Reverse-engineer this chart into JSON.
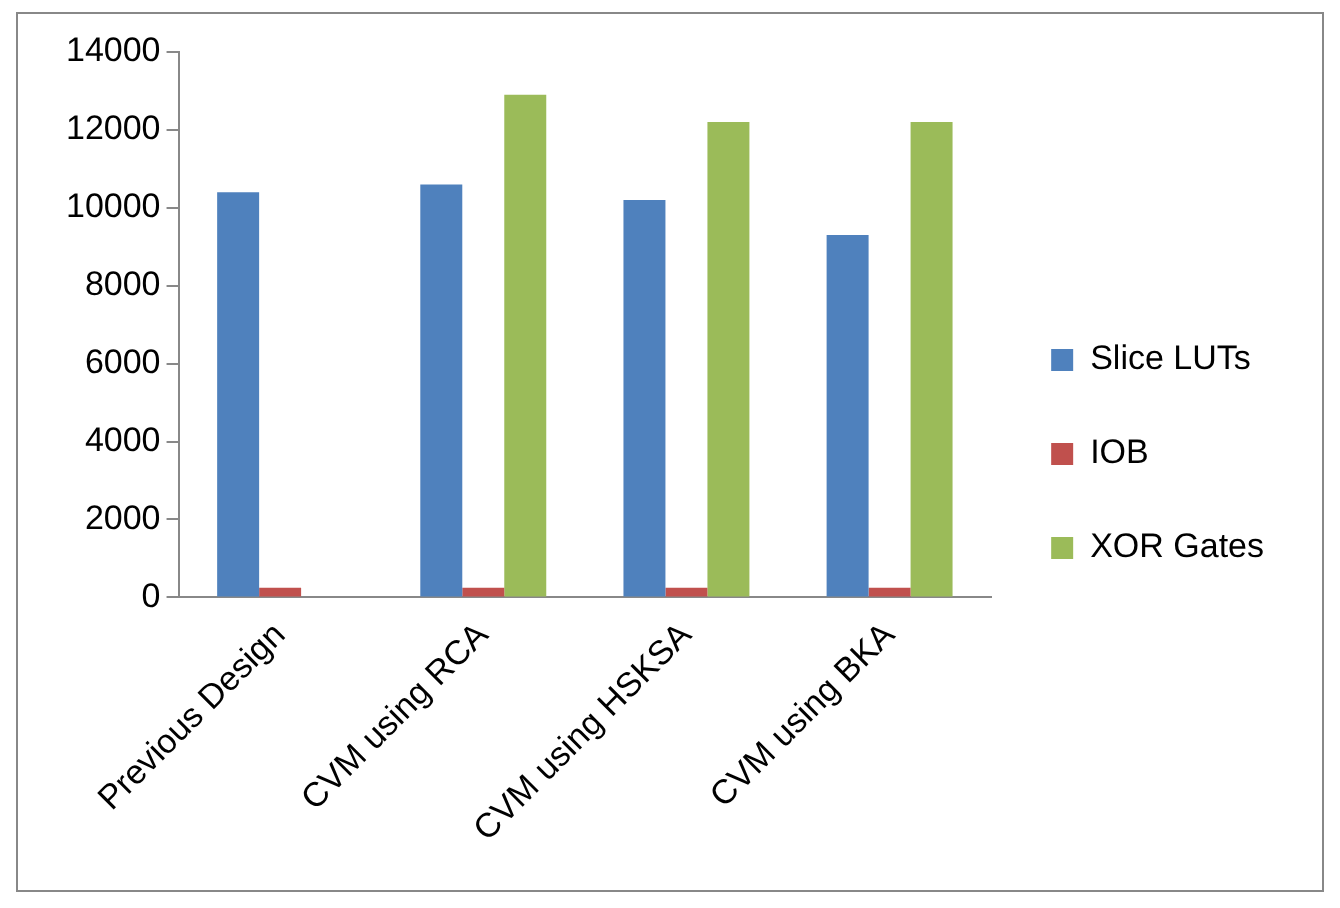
{
  "chart_data": {
    "type": "bar",
    "categories": [
      "Previous Design",
      "CVM using RCA",
      "CVM using HSKSA",
      "CVM using BKA"
    ],
    "series": [
      {
        "name": "Slice LUTs",
        "color": "#4f81bd",
        "values": [
          10400,
          10600,
          10200,
          9300
        ]
      },
      {
        "name": "IOB",
        "color": "#c0504d",
        "values": [
          250,
          250,
          250,
          250
        ]
      },
      {
        "name": "XOR Gates",
        "color": "#9bbb59",
        "values": [
          null,
          12900,
          12200,
          12200
        ]
      }
    ],
    "ylim": [
      0,
      14000
    ],
    "yticks": [
      0,
      2000,
      4000,
      6000,
      8000,
      10000,
      12000,
      14000
    ],
    "grid": false,
    "legend": "right"
  }
}
